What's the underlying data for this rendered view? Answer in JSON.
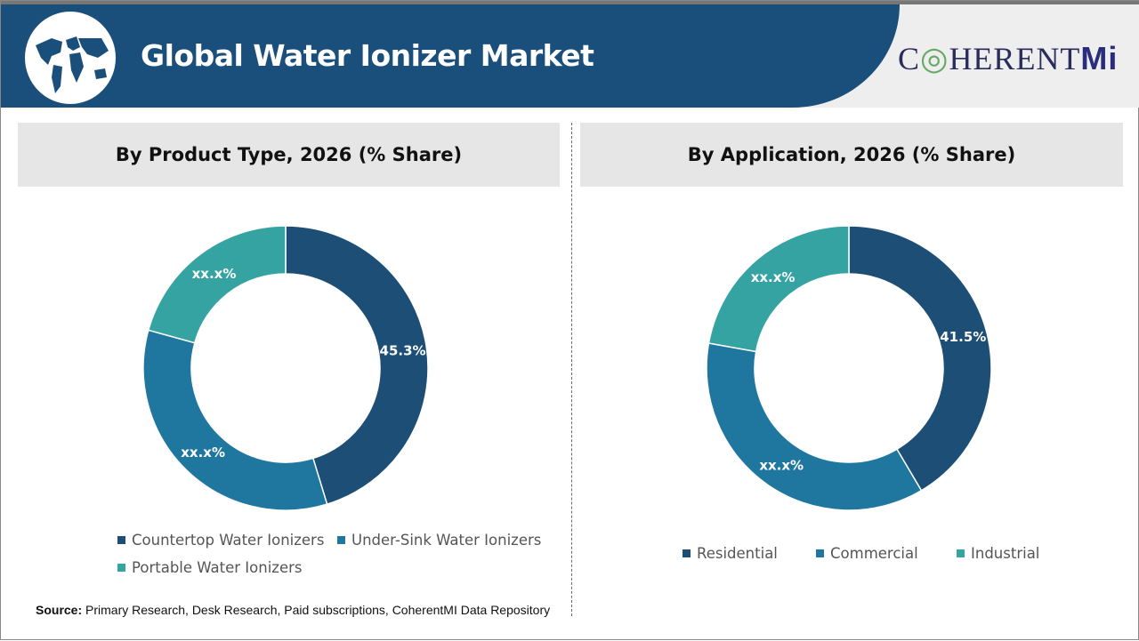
{
  "header": {
    "title": "Global Water Ionizer Market",
    "logo_text": "COHERENTMI",
    "colors": {
      "banner": "#1b4f7b"
    }
  },
  "source": {
    "label": "Source:",
    "text": "Primary Research, Desk Research, Paid subscriptions, CoherentMI Data Repository"
  },
  "chart_data": [
    {
      "type": "pie",
      "donut": true,
      "title": "By Product Type, 2026 (% Share)",
      "categories": [
        "Countertop Water Ionizers",
        "Under-Sink Water Ionizers",
        "Portable Water Ionizers"
      ],
      "values": [
        45.3,
        34.0,
        20.7
      ],
      "data_labels": [
        "45.3%",
        "xx.x%",
        "xx.x%"
      ],
      "colors": [
        "#1d4e76",
        "#1f77a0",
        "#36a3a3"
      ],
      "legend": "bottom"
    },
    {
      "type": "pie",
      "donut": true,
      "title": "By Application, 2026 (% Share)",
      "categories": [
        "Residential",
        "Commercial",
        "Industrial"
      ],
      "values": [
        41.5,
        36.3,
        22.2
      ],
      "data_labels": [
        "41.5%",
        "xx.x%",
        "xx.x%"
      ],
      "colors": [
        "#1d4e76",
        "#1f77a0",
        "#36a3a3"
      ],
      "legend": "bottom"
    }
  ]
}
